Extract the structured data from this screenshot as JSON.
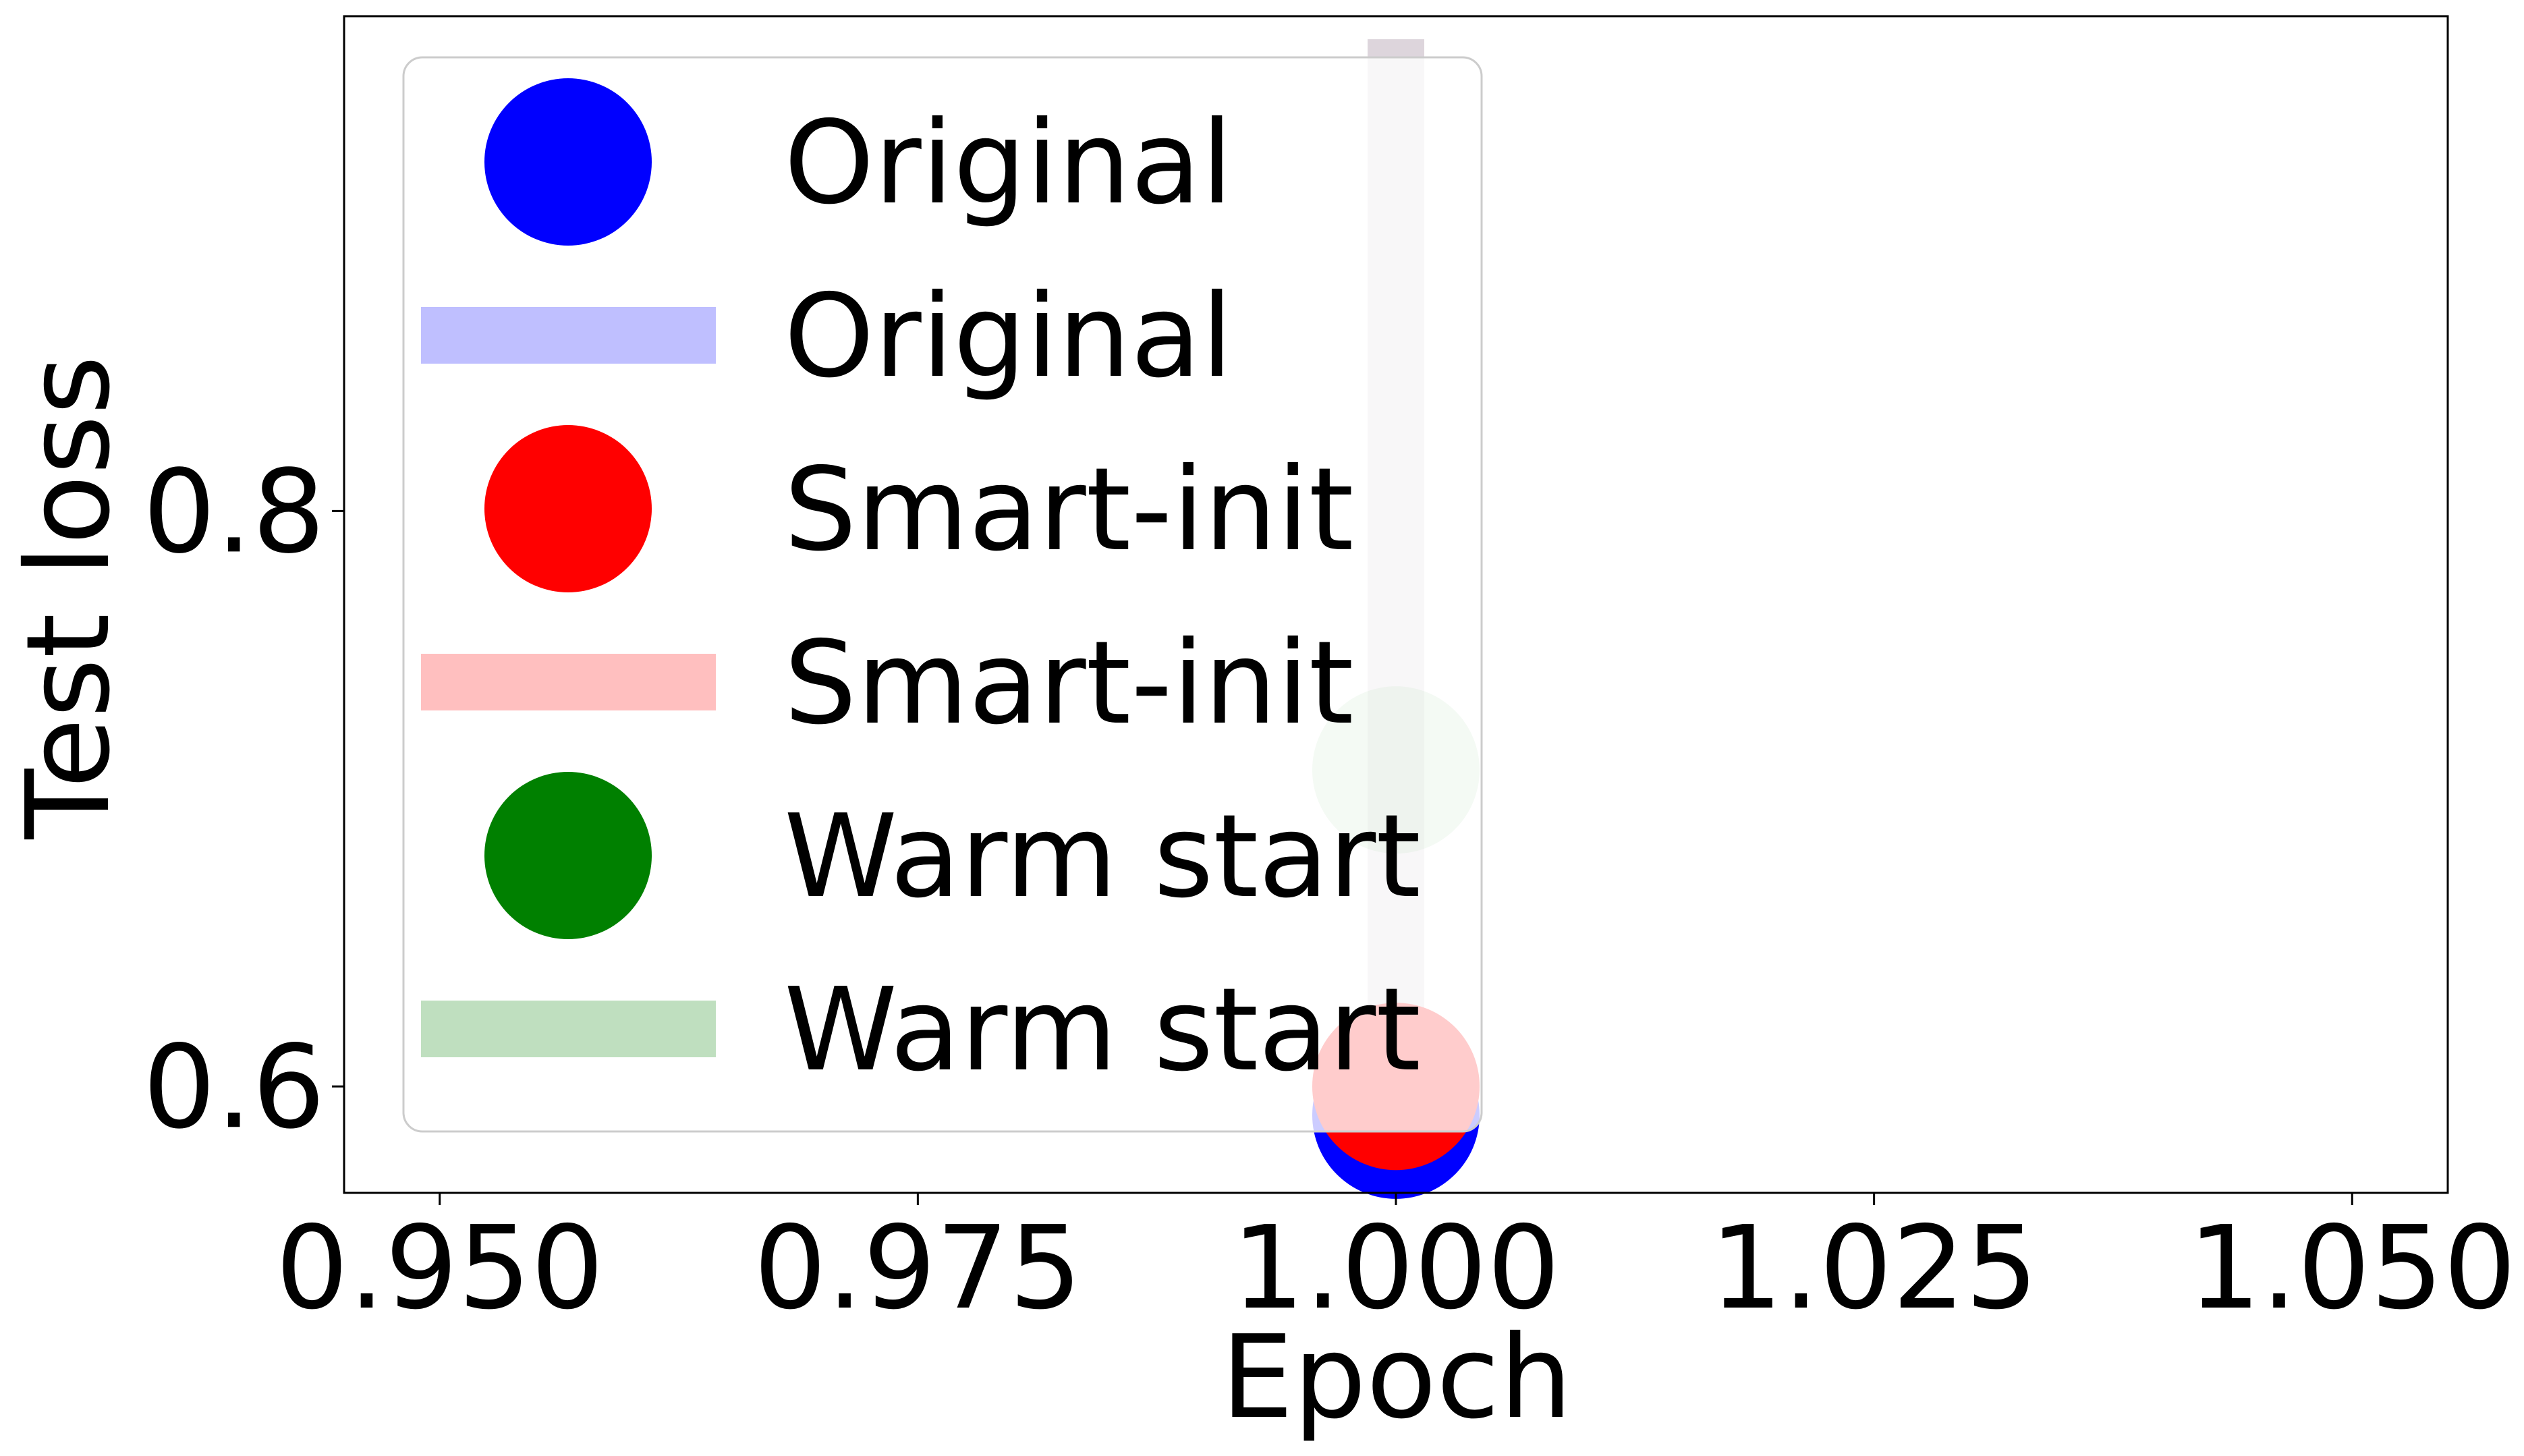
{
  "chart_data": {
    "type": "scatter",
    "xlabel": "Epoch",
    "ylabel": "Test loss",
    "xlim": [
      0.945,
      1.055
    ],
    "ylim": [
      0.563,
      0.972
    ],
    "xticks": [
      0.95,
      0.975,
      1.0,
      1.025,
      1.05
    ],
    "xtick_labels": [
      "0.950",
      "0.975",
      "1.000",
      "1.025",
      "1.050"
    ],
    "yticks": [
      0.6,
      0.8
    ],
    "ytick_labels": [
      "0.6",
      "0.8"
    ],
    "grid": false,
    "legend_position": "top-left",
    "series": [
      {
        "name": "Original",
        "x": [
          1.0
        ],
        "y": [
          0.59
        ],
        "band": [
          0.584,
          0.964
        ],
        "color": "#0000ff"
      },
      {
        "name": "Smart-init",
        "x": [
          1.0
        ],
        "y": [
          0.6
        ],
        "band": [
          0.584,
          0.964
        ],
        "color": "#ff0000"
      },
      {
        "name": "Warm start",
        "x": [
          1.0
        ],
        "y": [
          0.71
        ],
        "band": [
          0.584,
          0.964
        ],
        "color": "#008000"
      }
    ],
    "legend": [
      {
        "label": "Original",
        "kind": "marker",
        "color": "#0000ff"
      },
      {
        "label": "Original",
        "kind": "band",
        "color": "#0000ff"
      },
      {
        "label": "Smart-init",
        "kind": "marker",
        "color": "#ff0000"
      },
      {
        "label": "Smart-init",
        "kind": "band",
        "color": "#ff0000"
      },
      {
        "label": "Warm start",
        "kind": "marker",
        "color": "#008000"
      },
      {
        "label": "Warm start",
        "kind": "band",
        "color": "#008000"
      }
    ]
  }
}
